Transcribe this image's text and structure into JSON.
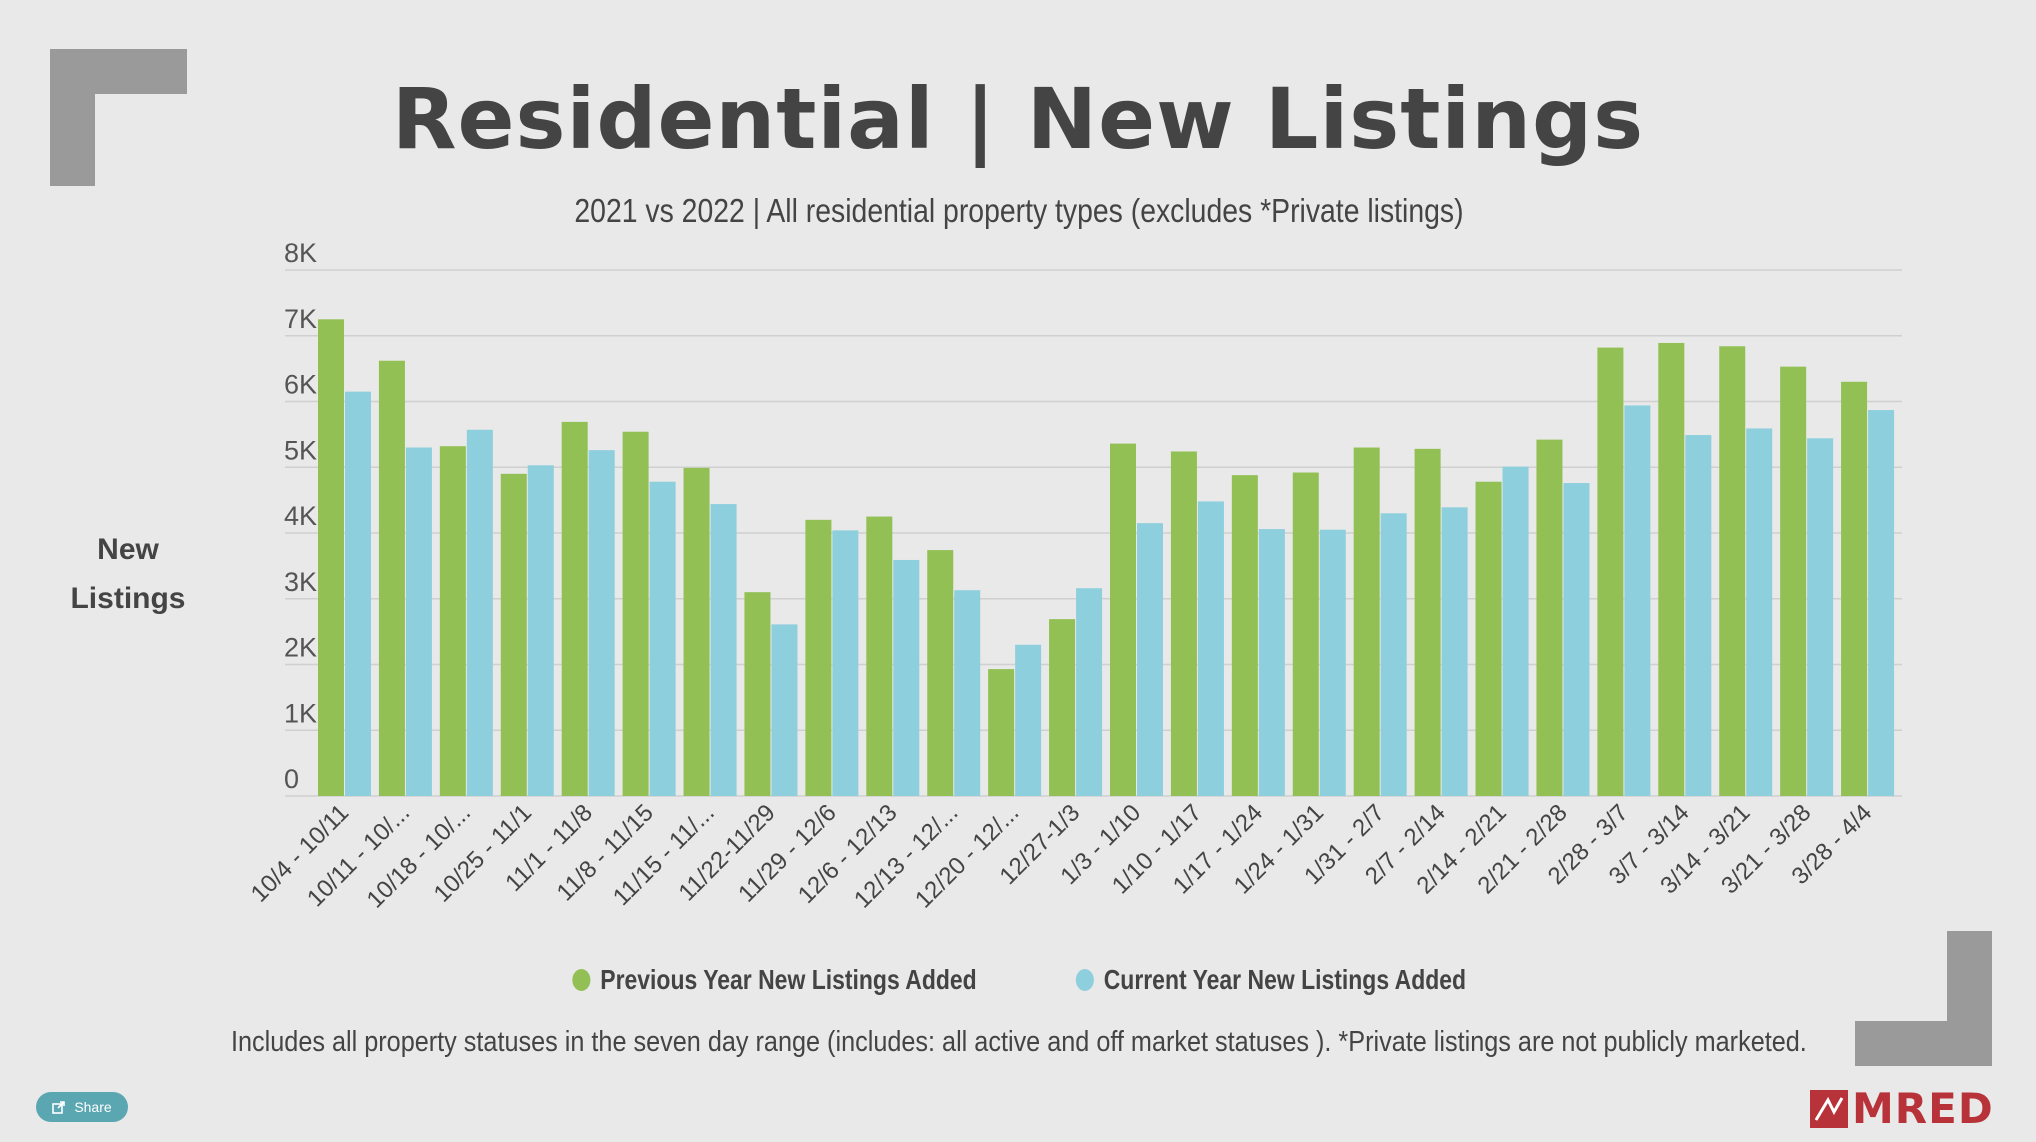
{
  "title": "Residential | New Listings",
  "subtitle": "2021 vs 2022 | All residential property types (excludes *Private listings)",
  "y_axis_label_line1": "New",
  "y_axis_label_line2": "Listings",
  "footnote": "Includes all property statuses in the seven day range (includes: all active and off market statuses ).  *Private listings are not publicly marketed.",
  "share_label": "Share",
  "logo_text": "MRED",
  "colors": {
    "previous": "#92c054",
    "current": "#8ecfdd",
    "grid": "#cfd0cf",
    "brand": "#b8323a"
  },
  "chart_data": {
    "type": "bar",
    "ylim": [
      0,
      8000
    ],
    "yticks": [
      "0",
      "1K",
      "2K",
      "3K",
      "4K",
      "5K",
      "6K",
      "7K",
      "8K"
    ],
    "grid": true,
    "legend_position": "bottom",
    "categories": [
      "10/4 - 10/11",
      "10/11 - 10/...",
      "10/18 - 10/...",
      "10/25 - 11/1",
      "11/1 - 11/8",
      "11/8 - 11/15",
      "11/15 - 11/...",
      "11/22-11/29",
      "11/29 - 12/6",
      "12/6 - 12/13",
      "12/13 - 12/...",
      "12/20 - 12/...",
      "12/27-1/3",
      "1/3 - 1/10",
      "1/10 - 1/17",
      "1/17 - 1/24",
      "1/24 - 1/31",
      "1/31 - 2/7",
      "2/7 - 2/14",
      "2/14 - 2/21",
      "2/21 - 2/28",
      "2/28 - 3/7",
      "3/7 - 3/14",
      "3/14 - 3/21",
      "3/21 - 3/28",
      "3/28 - 4/4"
    ],
    "series": [
      {
        "name": "Previous Year New Listings Added",
        "values": [
          7250,
          6620,
          5320,
          4900,
          5690,
          5540,
          4990,
          3100,
          4200,
          4250,
          3740,
          1930,
          2690,
          5360,
          5240,
          4880,
          4920,
          5300,
          5280,
          4780,
          5420,
          6820,
          6890,
          6840,
          6530,
          6300
        ]
      },
      {
        "name": "Current Year New Listings Added",
        "values": [
          6150,
          5300,
          5570,
          5030,
          5260,
          4780,
          4440,
          2610,
          4040,
          3590,
          3130,
          2300,
          3160,
          4150,
          4480,
          4060,
          4050,
          4300,
          4390,
          5010,
          4760,
          5940,
          5490,
          5590,
          5440,
          5870
        ]
      }
    ]
  }
}
